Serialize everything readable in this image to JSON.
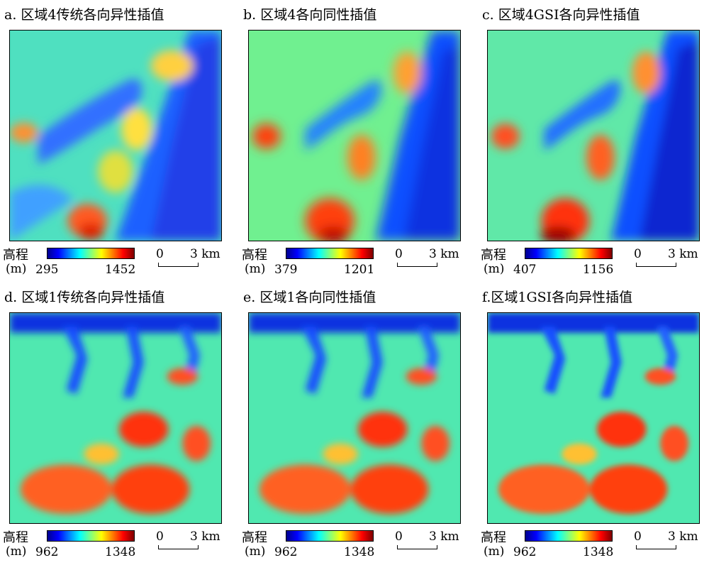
{
  "legend_colors": [
    "#00008f",
    "#0000ff",
    "#0080ff",
    "#00ffff",
    "#80ff80",
    "#ffff00",
    "#ff8000",
    "#ff0000",
    "#800000"
  ],
  "panels": [
    {
      "title": "a. 区域4传统各向异性插值",
      "legend_title": "高程",
      "unit": "(m)",
      "min": "295",
      "max": "1452",
      "scale_zero": "0",
      "scale_len": "3 km",
      "region": "4"
    },
    {
      "title": "b. 区域4各向同性插值",
      "legend_title": "高程",
      "unit": "(m)",
      "min": "379",
      "max": "1201",
      "scale_zero": "0",
      "scale_len": "3 km",
      "region": "4"
    },
    {
      "title": "c. 区域4GSI各向异性插值",
      "legend_title": "高程",
      "unit": "(m)",
      "min": "407",
      "max": "1156",
      "scale_zero": "0",
      "scale_len": "3 km",
      "region": "4"
    },
    {
      "title": "d. 区域1传统各向异性插值",
      "legend_title": "高程",
      "unit": "(m)",
      "min": "962",
      "max": "1348",
      "scale_zero": "0",
      "scale_len": "3 km",
      "region": "1"
    },
    {
      "title": "e. 区域1各向同性插值",
      "legend_title": "高程",
      "unit": "(m)",
      "min": "962",
      "max": "1348",
      "scale_zero": "0",
      "scale_len": "3 km",
      "region": "1"
    },
    {
      "title": "f.区域1GSI各向异性插值",
      "legend_title": "高程",
      "unit": "(m)",
      "min": "962",
      "max": "1348",
      "scale_zero": "0",
      "scale_len": "3 km",
      "region": "1"
    }
  ]
}
